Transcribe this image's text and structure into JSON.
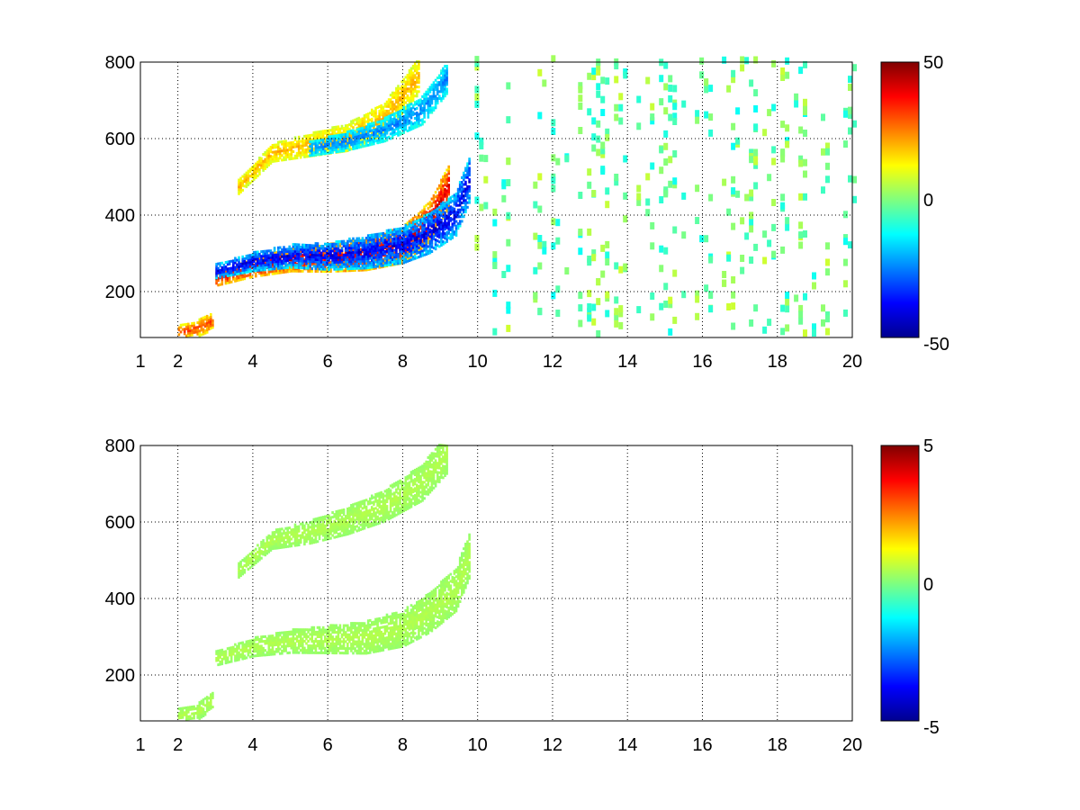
{
  "chart_data": [
    {
      "type": "heatmap",
      "title": "",
      "xlabel": "",
      "ylabel": "",
      "xlim": [
        1,
        20
      ],
      "ylim": [
        80,
        800
      ],
      "grid": true,
      "colormap": "jet",
      "colorbar": {
        "range": [
          -50,
          50
        ],
        "ticks": [
          "50",
          "0",
          "-50"
        ]
      },
      "xticks": [
        "1",
        "2",
        "4",
        "6",
        "8",
        "10",
        "12",
        "14",
        "16",
        "18",
        "20"
      ],
      "yticks": [
        "200",
        "400",
        "600",
        "800"
      ],
      "bands": [
        {
          "x": [
            3.0,
            4.0,
            5.0,
            6.0,
            7.0,
            8.0,
            8.7,
            9.2
          ],
          "y": [
            230,
            260,
            280,
            285,
            295,
            320,
            380,
            470
          ],
          "value": 40
        },
        {
          "x": [
            3.0,
            4.0,
            5.0,
            6.0,
            7.0,
            8.0,
            8.7,
            9.4,
            9.8
          ],
          "y": [
            250,
            275,
            290,
            290,
            300,
            320,
            350,
            400,
            500
          ],
          "value": -40
        },
        {
          "x": [
            3.6,
            4.5,
            5.5,
            6.5,
            7.5,
            8.4
          ],
          "y": [
            470,
            560,
            580,
            600,
            650,
            760
          ],
          "value": 20
        },
        {
          "x": [
            5.5,
            6.5,
            7.5,
            8.5,
            9.2
          ],
          "y": [
            570,
            590,
            620,
            670,
            760
          ],
          "value": -25
        },
        {
          "x": [
            2.0,
            2.5,
            2.9
          ],
          "y": [
            90,
            100,
            120
          ],
          "value": 30
        }
      ],
      "noise_region": {
        "x": [
          9.8,
          20
        ],
        "values": [
          -12,
          8
        ]
      }
    },
    {
      "type": "heatmap",
      "title": "",
      "xlabel": "",
      "ylabel": "",
      "xlim": [
        1,
        20
      ],
      "ylim": [
        80,
        800
      ],
      "grid": true,
      "colormap": "jet",
      "colorbar": {
        "range": [
          -5,
          5
        ],
        "ticks": [
          "5",
          "0",
          "-5"
        ]
      },
      "xticks": [
        "1",
        "2",
        "4",
        "6",
        "8",
        "10",
        "12",
        "14",
        "16",
        "18",
        "20"
      ],
      "yticks": [
        "200",
        "400",
        "600",
        "800"
      ],
      "bands": [
        {
          "x": [
            3.0,
            4.0,
            5.0,
            6.0,
            7.0,
            8.0,
            8.7,
            9.4,
            9.8
          ],
          "y": [
            240,
            270,
            285,
            290,
            295,
            320,
            360,
            420,
            520
          ],
          "value": 0.5
        },
        {
          "x": [
            3.6,
            4.5,
            5.5,
            6.5,
            7.5,
            8.5,
            9.2
          ],
          "y": [
            470,
            550,
            570,
            600,
            640,
            700,
            780
          ],
          "value": 0.5
        },
        {
          "x": [
            2.0,
            2.5,
            2.9
          ],
          "y": [
            90,
            100,
            130
          ],
          "value": 0.5
        }
      ]
    }
  ]
}
